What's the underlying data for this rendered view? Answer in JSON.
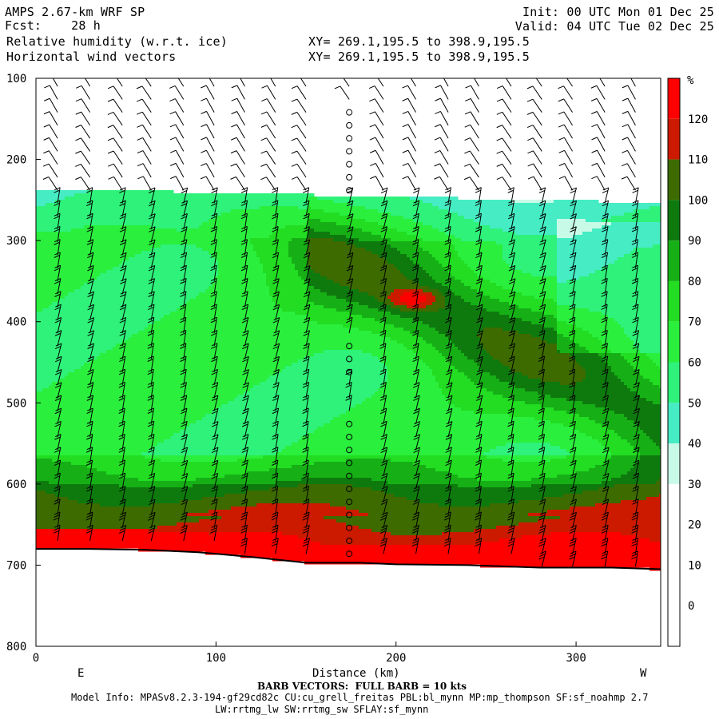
{
  "header": {
    "model": "AMPS 2.67-km WRF SP",
    "fcst_label": "Fcst:",
    "fcst_value": "28 h",
    "field1": "Relative humidity (w.r.t. ice)",
    "field2": "Horizontal wind vectors",
    "init": "Init: 00 UTC Mon 01 Dec 25",
    "valid": "Valid: 04 UTC Tue 02 Dec 25",
    "xy1": "XY= 269.1,195.5 to 398.9,195.5",
    "xy2": "XY= 269.1,195.5 to 398.9,195.5"
  },
  "footer": {
    "barb_note": "BARB VECTORS:  FULL BARB = 10 kts",
    "model_info_1": "Model Info: MPASv8.2.3-194-gf29cd82c CU:cu_grell_freitas PBL:bl_mynn MP:mp_thompson SF:sf_noahmp 2.7",
    "model_info_2": "LW:rrtmg_lw SW:rrtmg_sw SFLAY:sf_mynn"
  },
  "chart_data": {
    "type": "heatmap",
    "title": "Relative humidity (w.r.t. ice)",
    "xlabel": "Distance (km)",
    "ylabel": "",
    "x_range": [
      0,
      347
    ],
    "y_range": [
      100,
      800
    ],
    "y_axis": "pressure (hPa), increasing downward",
    "x_ticks": [
      "0",
      "100",
      "200",
      "300"
    ],
    "y_ticks": [
      "100",
      "200",
      "300",
      "400",
      "500",
      "600",
      "700",
      "800"
    ],
    "direction_labels": [
      "E",
      "W"
    ],
    "colorbar": {
      "unit": "%",
      "ticks": [
        "120",
        "110",
        "100",
        "90",
        "80",
        "70",
        "60",
        "50",
        "40",
        "30",
        "20",
        "10",
        "0"
      ],
      "bands": [
        {
          "from": 120,
          "to": 130,
          "color": "#ff0000"
        },
        {
          "from": 110,
          "to": 120,
          "color": "#cc1a00"
        },
        {
          "from": 100,
          "to": 110,
          "color": "#3d6b00"
        },
        {
          "from": 90,
          "to": 100,
          "color": "#0e7a0e"
        },
        {
          "from": 80,
          "to": 90,
          "color": "#16b016"
        },
        {
          "from": 70,
          "to": 80,
          "color": "#22dd22"
        },
        {
          "from": 60,
          "to": 70,
          "color": "#2aef3d"
        },
        {
          "from": 50,
          "to": 60,
          "color": "#2ef27a"
        },
        {
          "from": 40,
          "to": 50,
          "color": "#45ecc4"
        },
        {
          "from": 30,
          "to": 40,
          "color": "#c8fae8"
        },
        {
          "from": -10,
          "to": 30,
          "color": "#ffffff"
        }
      ]
    },
    "terrain_surface_hPa": [
      [
        0,
        680
      ],
      [
        30,
        680
      ],
      [
        60,
        681
      ],
      [
        90,
        684
      ],
      [
        120,
        690
      ],
      [
        150,
        697
      ],
      [
        180,
        697
      ],
      [
        200,
        699
      ],
      [
        240,
        700
      ],
      [
        280,
        703
      ],
      [
        320,
        703
      ],
      [
        347,
        705
      ]
    ],
    "barb_columns_km": [
      12,
      30,
      48,
      64,
      82,
      99,
      116,
      133,
      150,
      174,
      193,
      211,
      229,
      246,
      264,
      281,
      298,
      316,
      333
    ],
    "barb_unit_note": "FULL BARB = 10 kts"
  }
}
